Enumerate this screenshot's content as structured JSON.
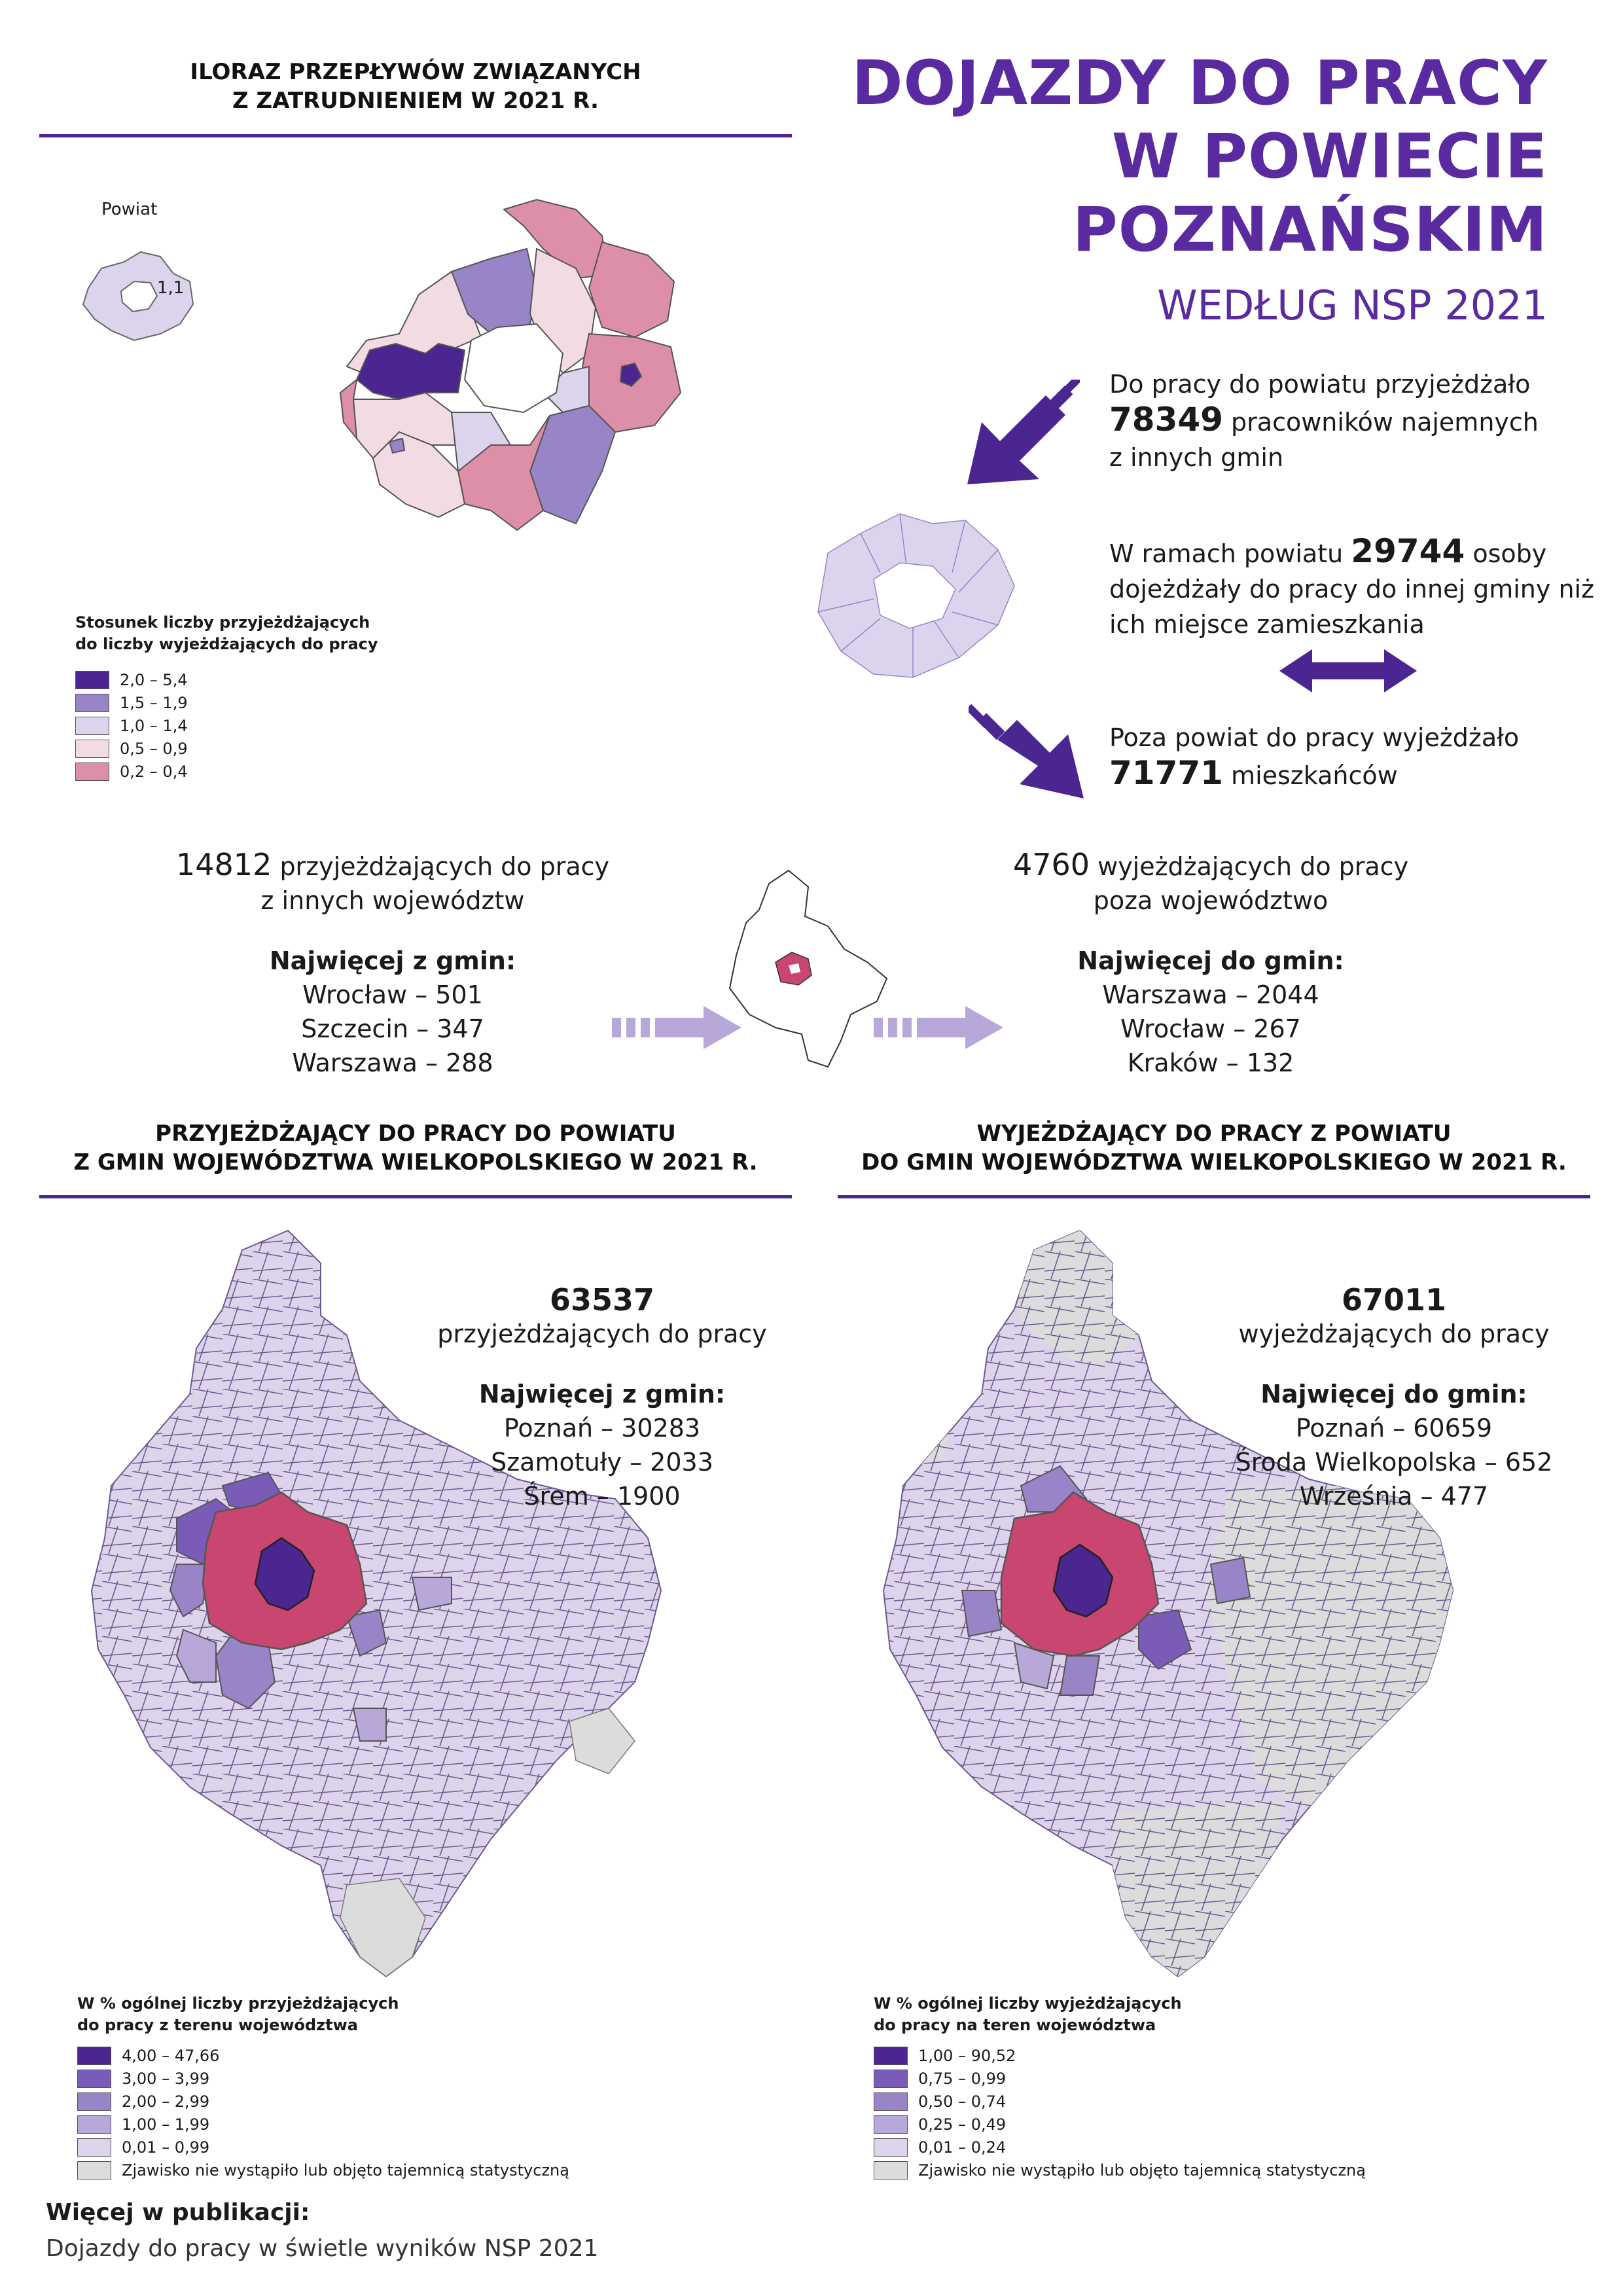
{
  "header": {
    "title_lines": [
      "DOJAZDY DO PRACY",
      "W POWIECIE",
      "POZNAŃSKIM"
    ],
    "subtitle": "WEDŁUG NSP 2021"
  },
  "colors": {
    "accent": "#5a2aa0",
    "dark_purple": "#4b2590",
    "crimson": "#c8466f"
  },
  "quotient_section": {
    "heading_line1": "ILORAZ PRZEPŁYWÓW ZWIĄZANYCH",
    "heading_line2": "Z ZATRUDNIENIEM W 2021 R.",
    "powiat_label": "Powiat",
    "powiat_value": "1,1",
    "legend_title_line1": "Stosunek liczby przyjeżdżających",
    "legend_title_line2": "do liczby wyjeżdżających do pracy",
    "legend": [
      {
        "label": "2,0 – 5,4",
        "color": "#4b2590"
      },
      {
        "label": "1,5 – 1,9",
        "color": "#9a84c8"
      },
      {
        "label": "1,0 – 1,4",
        "color": "#dcd3ec"
      },
      {
        "label": "0,5 – 0,9",
        "color": "#f3dbe4"
      },
      {
        "label": "0,2 – 0,4",
        "color": "#dc8fa7"
      }
    ]
  },
  "flows": {
    "in": {
      "pre": "Do pracy do powiatu przyjeżdżało",
      "value": "78349",
      "post": "pracowników najemnych",
      "post2": "z innych gmin"
    },
    "within": {
      "pre": "W ramach powiatu",
      "value": "29744",
      "post": "osoby",
      "line2": "dojeżdżały do pracy do innej gminy niż",
      "line3": "ich miejsce zamieszkania"
    },
    "out": {
      "pre": "Poza powiat do pracy wyjeżdżało",
      "value": "71771",
      "post": "mieszkańców"
    }
  },
  "interregional": {
    "in": {
      "value": "14812",
      "label": "przyjeżdżających do pracy",
      "label2": "z innych województw",
      "top_label": "Najwięcej z gmin:",
      "items": [
        "Wrocław – 501",
        "Szczecin – 347",
        "Warszawa – 288"
      ]
    },
    "out": {
      "value": "4760",
      "label": "wyjeżdżających do pracy",
      "label2": "poza województwo",
      "top_label": "Najwięcej do gmin:",
      "items": [
        "Warszawa – 2044",
        "Wrocław – 267",
        "Kraków – 132"
      ]
    }
  },
  "incoming_map": {
    "heading_line1": "PRZYJEŻDŻAJĄCY DO PRACY DO POWIATU",
    "heading_line2": "Z GMIN WOJEWÓDZTWA WIELKOPOLSKIEGO  W  2021  R.",
    "total": "63537",
    "total_label": "przyjeżdżających do pracy",
    "top_label": "Najwięcej z gmin:",
    "items": [
      "Poznań – 30283",
      "Szamotuły – 2033",
      "Śrem – 1900"
    ],
    "legend_title_line1": "W % ogólnej liczby przyjeżdżających",
    "legend_title_line2": "do pracy z terenu województwa",
    "legend": [
      {
        "label": "4,00 – 47,66",
        "color": "#4b2590"
      },
      {
        "label": "3,00 –   3,99",
        "color": "#7a5cb8"
      },
      {
        "label": "2,00 –   2,99",
        "color": "#9a84c8"
      },
      {
        "label": "1,00 –   1,99",
        "color": "#b8a8da"
      },
      {
        "label": "0,01 –   0,99",
        "color": "#ddd4ec"
      },
      {
        "label": "Zjawisko nie wystąpiło lub objęto tajemnicą statystyczną",
        "color": "#dcdcdc"
      }
    ]
  },
  "outgoing_map": {
    "heading_line1": "WYJEŻDŻAJĄCY DO PRACY Z POWIATU",
    "heading_line2": "DO GMIN WOJEWÓDZTWA WIELKOPOLSKIEGO  W  2021  R.",
    "total": "67011",
    "total_label": "wyjeżdżających do pracy",
    "top_label": "Najwięcej do gmin:",
    "items": [
      "Poznań – 60659",
      "Środa Wielkopolska – 652",
      "Września – 477"
    ],
    "legend_title_line1": "W % ogólnej liczby wyjeżdżających",
    "legend_title_line2": "do pracy na teren województwa",
    "legend": [
      {
        "label": "1,00 – 90,52",
        "color": "#4b2590"
      },
      {
        "label": "0,75 –   0,99",
        "color": "#7a5cb8"
      },
      {
        "label": "0,50 –   0,74",
        "color": "#9a84c8"
      },
      {
        "label": "0,25 –   0,49",
        "color": "#b8a8da"
      },
      {
        "label": "0,01 –   0,24",
        "color": "#ddd4ec"
      },
      {
        "label": "Zjawisko nie wystąpiło lub objęto tajemnicą statystyczną",
        "color": "#dcdcdc"
      }
    ]
  },
  "footer": {
    "more_label": "Więcej w publikacji:",
    "publication": "Dojazdy do pracy w świetle wyników NSP 2021"
  }
}
